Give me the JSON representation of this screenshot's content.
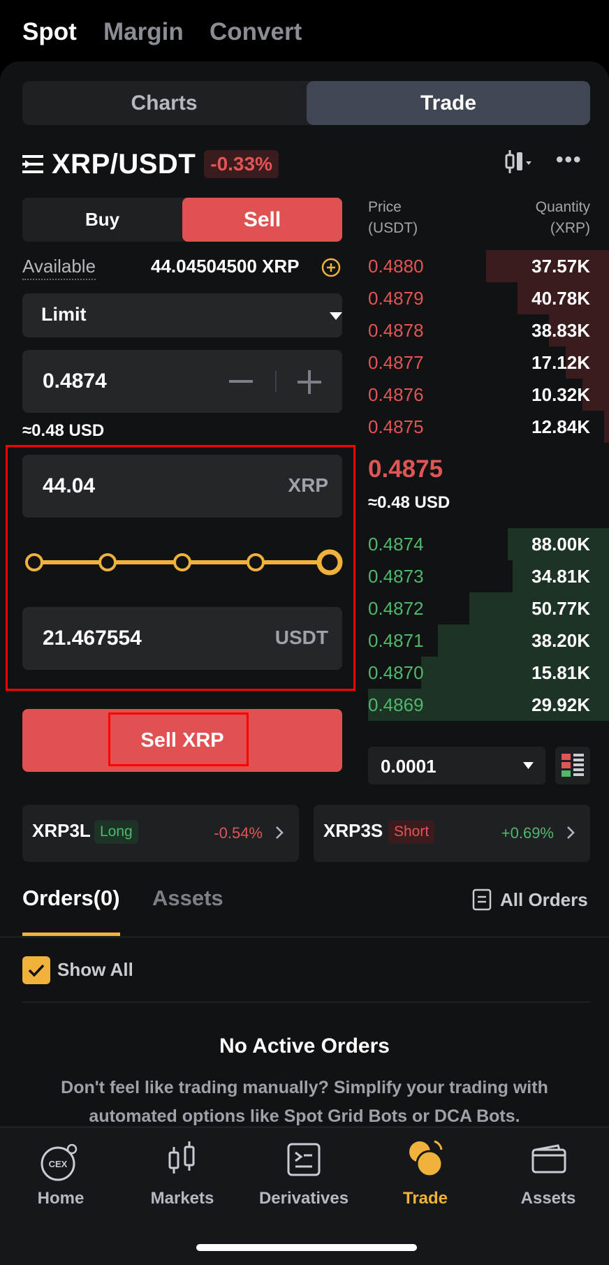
{
  "top_tabs": [
    "Spot",
    "Margin",
    "Convert"
  ],
  "view_toggle": {
    "charts": "Charts",
    "trade": "Trade"
  },
  "pair": {
    "name": "XRP/USDT",
    "change": "-0.33%"
  },
  "order_form": {
    "buy_label": "Buy",
    "sell_label": "Sell",
    "available_label": "Available",
    "available_value": "44.04504500 XRP",
    "order_type": "Limit",
    "price_value": "0.4874",
    "price_usd": "≈0.48 USD",
    "amount_value": "44.04",
    "amount_unit": "XRP",
    "slider_percent": 100,
    "total_value": "21.467554",
    "total_unit": "USDT",
    "submit_label": "Sell XRP"
  },
  "orderbook": {
    "price_header": [
      "Price",
      "(USDT)"
    ],
    "qty_header": [
      "Quantity",
      "(XRP)"
    ],
    "asks": [
      {
        "price": "0.4880",
        "qty": "37.57K",
        "depth": 0.51
      },
      {
        "price": "0.4879",
        "qty": "40.78K",
        "depth": 0.38
      },
      {
        "price": "0.4878",
        "qty": "38.83K",
        "depth": 0.25
      },
      {
        "price": "0.4877",
        "qty": "17.12K",
        "depth": 0.18
      },
      {
        "price": "0.4876",
        "qty": "10.32K",
        "depth": 0.11
      },
      {
        "price": "0.4875",
        "qty": "12.84K",
        "depth": 0.02
      }
    ],
    "last_price": "0.4875",
    "last_price_usd": "≈0.48 USD",
    "bids": [
      {
        "price": "0.4874",
        "qty": "88.00K",
        "depth": 0.42
      },
      {
        "price": "0.4873",
        "qty": "34.81K",
        "depth": 0.4
      },
      {
        "price": "0.4872",
        "qty": "50.77K",
        "depth": 0.58
      },
      {
        "price": "0.4871",
        "qty": "38.20K",
        "depth": 0.71
      },
      {
        "price": "0.4870",
        "qty": "15.81K",
        "depth": 0.78
      },
      {
        "price": "0.4869",
        "qty": "29.92K",
        "depth": 1.0
      }
    ],
    "precision": "0.0001"
  },
  "leveraged": [
    {
      "name": "XRP3L",
      "tag": "Long",
      "change": "-0.54%"
    },
    {
      "name": "XRP3S",
      "tag": "Short",
      "change": "+0.69%"
    }
  ],
  "orders": {
    "tab_orders": "Orders(0)",
    "tab_assets": "Assets",
    "all_orders": "All Orders",
    "show_all": "Show All",
    "empty_title": "No Active Orders",
    "empty_desc_1": "Don't feel like trading manually? Simplify your trading with",
    "empty_desc_2": "automated options like Spot Grid Bots or DCA Bots."
  },
  "nav": [
    {
      "label": "Home",
      "icon": "cex-icon"
    },
    {
      "label": "Markets",
      "icon": "candlestick-icon"
    },
    {
      "label": "Derivatives",
      "icon": "derivatives-icon"
    },
    {
      "label": "Trade",
      "icon": "trade-icon"
    },
    {
      "label": "Assets",
      "icon": "wallet-icon"
    }
  ],
  "colors": {
    "red": "#e25555",
    "green": "#4fb86b",
    "accent": "#f0b23a"
  }
}
